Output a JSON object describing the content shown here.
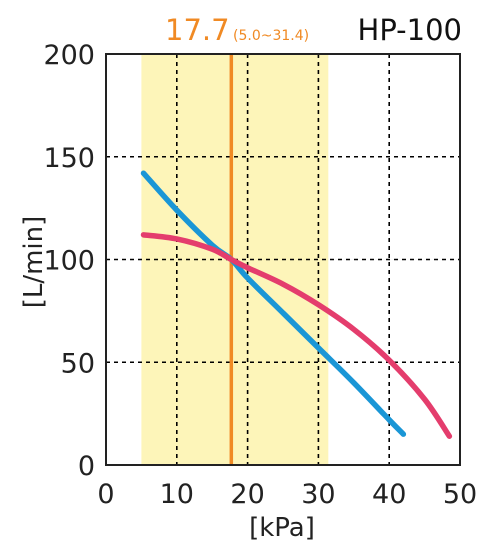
{
  "header": {
    "model": "HP-100",
    "rated_value": "17.7",
    "rated_range": "(5.0~31.4)"
  },
  "chart_data": {
    "type": "line",
    "title": "HP-100",
    "xlabel": "[kPa]",
    "ylabel": "[L/min]",
    "xlim": [
      0,
      50
    ],
    "ylim": [
      0,
      200
    ],
    "xticks": [
      0,
      10,
      20,
      30,
      40,
      50
    ],
    "yticks": [
      0,
      50,
      100,
      150,
      200
    ],
    "xtick_labels": [
      "0",
      "10",
      "20",
      "30",
      "40",
      "50"
    ],
    "ytick_labels": [
      "0",
      "50",
      "100",
      "150",
      "200"
    ],
    "grid": true,
    "rated_point": {
      "x": 17.7,
      "label": "17.7"
    },
    "operating_range": {
      "x": [
        5.0,
        31.4
      ],
      "label": "(5.0~31.4)"
    },
    "series": [
      {
        "color": "#1a96d6",
        "x": [
          5.3,
          10,
          15,
          17.7,
          20,
          25,
          30,
          35,
          40,
          42
        ],
        "y": [
          142,
          124,
          107,
          100,
          91,
          74,
          57,
          40,
          22,
          15
        ]
      },
      {
        "color": "#e43d6d",
        "x": [
          5.3,
          10,
          15,
          17.7,
          20,
          25,
          30,
          35,
          40,
          45,
          48.5
        ],
        "y": [
          112,
          110,
          105,
          100,
          96,
          88,
          78,
          66,
          51,
          32,
          14
        ]
      }
    ],
    "colors": {
      "rated_line": "#f08a24",
      "rated_text": "#f08a24",
      "range_band": "#fdf5b9",
      "grid": "#000000",
      "axis": "#222222"
    }
  }
}
